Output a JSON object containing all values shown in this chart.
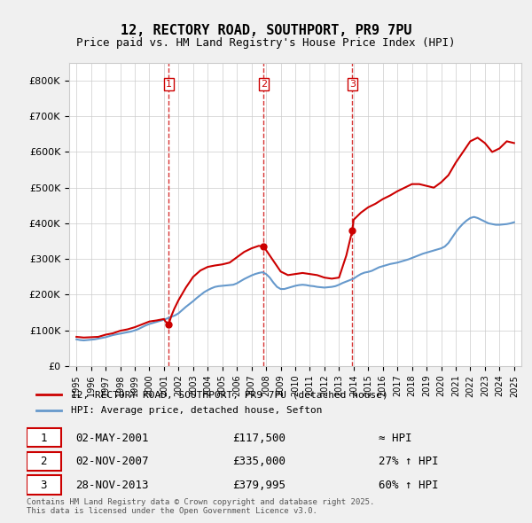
{
  "title1": "12, RECTORY ROAD, SOUTHPORT, PR9 7PU",
  "title2": "Price paid vs. HM Land Registry's House Price Index (HPI)",
  "legend_label_red": "12, RECTORY ROAD, SOUTHPORT, PR9 7PU (detached house)",
  "legend_label_blue": "HPI: Average price, detached house, Sefton",
  "footer": "Contains HM Land Registry data © Crown copyright and database right 2025.\nThis data is licensed under the Open Government Licence v3.0.",
  "purchases": [
    {
      "num": 1,
      "date": "02-MAY-2001",
      "price": 117500,
      "note": "≈ HPI"
    },
    {
      "num": 2,
      "date": "02-NOV-2007",
      "price": 335000,
      "note": "27% ↑ HPI"
    },
    {
      "num": 3,
      "date": "28-NOV-2013",
      "price": 379995,
      "note": "60% ↑ HPI"
    }
  ],
  "purchase_years": [
    2001.33,
    2007.83,
    2013.91
  ],
  "purchase_prices": [
    117500,
    335000,
    379995
  ],
  "ylim": [
    0,
    850000
  ],
  "yticks": [
    0,
    100000,
    200000,
    300000,
    400000,
    500000,
    600000,
    700000,
    800000
  ],
  "ytick_labels": [
    "£0",
    "£100K",
    "£200K",
    "£300K",
    "£400K",
    "£500K",
    "£600K",
    "£700K",
    "£800K"
  ],
  "xlim_start": 1994.5,
  "xlim_end": 2025.5,
  "xticks": [
    1995,
    1996,
    1997,
    1998,
    1999,
    2000,
    2001,
    2002,
    2003,
    2004,
    2005,
    2006,
    2007,
    2008,
    2009,
    2010,
    2011,
    2012,
    2013,
    2014,
    2015,
    2016,
    2017,
    2018,
    2019,
    2020,
    2021,
    2022,
    2023,
    2024,
    2025
  ],
  "red_color": "#cc0000",
  "blue_color": "#6699cc",
  "dashed_color": "#cc0000",
  "bg_color": "#f0f0f0",
  "plot_bg": "#ffffff",
  "hpi_data": {
    "years": [
      1995,
      1995.25,
      1995.5,
      1995.75,
      1996,
      1996.25,
      1996.5,
      1996.75,
      1997,
      1997.25,
      1997.5,
      1997.75,
      1998,
      1998.25,
      1998.5,
      1998.75,
      1999,
      1999.25,
      1999.5,
      1999.75,
      2000,
      2000.25,
      2000.5,
      2000.75,
      2001,
      2001.25,
      2001.5,
      2001.75,
      2002,
      2002.25,
      2002.5,
      2002.75,
      2003,
      2003.25,
      2003.5,
      2003.75,
      2004,
      2004.25,
      2004.5,
      2004.75,
      2005,
      2005.25,
      2005.5,
      2005.75,
      2006,
      2006.25,
      2006.5,
      2006.75,
      2007,
      2007.25,
      2007.5,
      2007.75,
      2008,
      2008.25,
      2008.5,
      2008.75,
      2009,
      2009.25,
      2009.5,
      2009.75,
      2010,
      2010.25,
      2010.5,
      2010.75,
      2011,
      2011.25,
      2011.5,
      2011.75,
      2012,
      2012.25,
      2012.5,
      2012.75,
      2013,
      2013.25,
      2013.5,
      2013.75,
      2014,
      2014.25,
      2014.5,
      2014.75,
      2015,
      2015.25,
      2015.5,
      2015.75,
      2016,
      2016.25,
      2016.5,
      2016.75,
      2017,
      2017.25,
      2017.5,
      2017.75,
      2018,
      2018.25,
      2018.5,
      2018.75,
      2019,
      2019.25,
      2019.5,
      2019.75,
      2020,
      2020.25,
      2020.5,
      2020.75,
      2021,
      2021.25,
      2021.5,
      2021.75,
      2022,
      2022.25,
      2022.5,
      2022.75,
      2023,
      2023.25,
      2023.5,
      2023.75,
      2024,
      2024.25,
      2024.5,
      2024.75,
      2025
    ],
    "values": [
      75000,
      73000,
      72000,
      73000,
      74000,
      75000,
      77000,
      79000,
      81000,
      84000,
      87000,
      89000,
      91000,
      93000,
      95000,
      97000,
      100000,
      104000,
      109000,
      114000,
      118000,
      121000,
      124000,
      127000,
      130000,
      134000,
      138000,
      142000,
      148000,
      157000,
      166000,
      174000,
      182000,
      191000,
      199000,
      207000,
      213000,
      218000,
      222000,
      224000,
      225000,
      226000,
      227000,
      228000,
      232000,
      238000,
      244000,
      249000,
      254000,
      258000,
      261000,
      263000,
      258000,
      248000,
      234000,
      222000,
      216000,
      216000,
      219000,
      222000,
      225000,
      227000,
      228000,
      227000,
      225000,
      224000,
      222000,
      221000,
      220000,
      221000,
      222000,
      224000,
      228000,
      233000,
      237000,
      241000,
      245000,
      252000,
      258000,
      262000,
      264000,
      267000,
      272000,
      277000,
      280000,
      283000,
      286000,
      288000,
      290000,
      293000,
      296000,
      299000,
      303000,
      307000,
      311000,
      315000,
      318000,
      321000,
      324000,
      327000,
      330000,
      335000,
      345000,
      360000,
      375000,
      388000,
      399000,
      408000,
      415000,
      418000,
      415000,
      410000,
      405000,
      400000,
      398000,
      396000,
      396000,
      397000,
      398000,
      400000,
      403000
    ]
  },
  "property_data": {
    "years": [
      1995,
      1995.5,
      1996,
      1996.5,
      1997,
      1997.5,
      1998,
      1998.5,
      1999,
      1999.5,
      2000,
      2000.5,
      2001,
      2001.1,
      2001.33,
      2001.5,
      2001.7,
      2002,
      2002.5,
      2003,
      2003.5,
      2004,
      2004.5,
      2005,
      2005.5,
      2006,
      2006.5,
      2007,
      2007.5,
      2007.83,
      2008,
      2008.5,
      2009,
      2009.5,
      2010,
      2010.5,
      2011,
      2011.5,
      2012,
      2012.5,
      2013,
      2013.5,
      2013.91,
      2014,
      2014.5,
      2015,
      2015.5,
      2016,
      2016.5,
      2017,
      2017.5,
      2018,
      2018.5,
      2019,
      2019.5,
      2020,
      2020.5,
      2021,
      2021.5,
      2022,
      2022.5,
      2023,
      2023.5,
      2024,
      2024.5,
      2025
    ],
    "values": [
      82000,
      80000,
      81000,
      82000,
      88000,
      92000,
      99000,
      103000,
      109000,
      117000,
      125000,
      128000,
      132000,
      125000,
      117500,
      140000,
      160000,
      185000,
      220000,
      250000,
      268000,
      278000,
      282000,
      285000,
      290000,
      305000,
      320000,
      330000,
      337000,
      335000,
      325000,
      295000,
      265000,
      255000,
      258000,
      261000,
      258000,
      255000,
      248000,
      245000,
      248000,
      310000,
      379995,
      410000,
      430000,
      445000,
      455000,
      468000,
      478000,
      490000,
      500000,
      510000,
      510000,
      505000,
      500000,
      515000,
      535000,
      570000,
      600000,
      630000,
      640000,
      625000,
      600000,
      610000,
      630000,
      625000
    ]
  },
  "vline_years": [
    2001.33,
    2007.83,
    2013.91
  ],
  "vline_nums": [
    1,
    2,
    3
  ]
}
